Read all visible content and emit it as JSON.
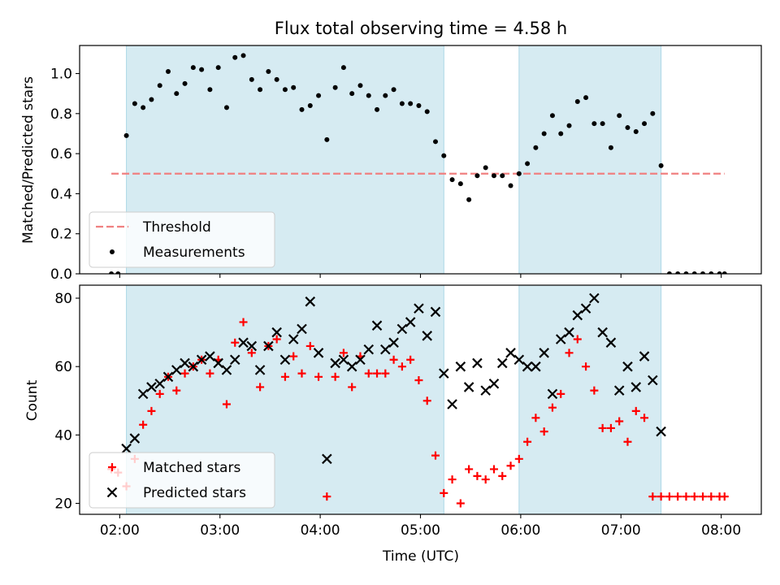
{
  "chart_data": [
    {
      "type": "scatter",
      "title": "Flux total observing time = 4.58 h",
      "xlabel": "",
      "ylabel": "Matched/Predicted stars",
      "xlim": [
        "01:36",
        "08:24"
      ],
      "ylim": [
        0,
        1.14
      ],
      "yticks": [
        0.0,
        0.2,
        0.4,
        0.6,
        0.8,
        1.0
      ],
      "ytick_labels": [
        "0.0",
        "0.2",
        "0.4",
        "0.6",
        "0.8",
        "1.0"
      ],
      "shaded_periods": [
        [
          "02:04",
          "05:14"
        ],
        [
          "05:59",
          "07:24"
        ]
      ],
      "threshold": {
        "name": "Threshold",
        "value": 0.5,
        "x_range": [
          "01:55",
          "08:02"
        ],
        "color": "#f08080"
      },
      "series": [
        {
          "name": "Measurements",
          "color": "#000000",
          "marker": "dot",
          "x": [
            "01:55",
            "01:59",
            "02:04",
            "02:09",
            "02:14",
            "02:19",
            "02:24",
            "02:29",
            "02:34",
            "02:39",
            "02:44",
            "02:49",
            "02:54",
            "02:59",
            "03:04",
            "03:09",
            "03:14",
            "03:19",
            "03:24",
            "03:29",
            "03:34",
            "03:39",
            "03:44",
            "03:49",
            "03:54",
            "03:59",
            "04:04",
            "04:09",
            "04:14",
            "04:19",
            "04:24",
            "04:29",
            "04:34",
            "04:39",
            "04:44",
            "04:49",
            "04:54",
            "04:59",
            "05:04",
            "05:09",
            "05:14",
            "05:19",
            "05:24",
            "05:29",
            "05:34",
            "05:39",
            "05:44",
            "05:49",
            "05:54",
            "05:59",
            "06:04",
            "06:09",
            "06:14",
            "06:19",
            "06:24",
            "06:29",
            "06:34",
            "06:39",
            "06:44",
            "06:49",
            "06:54",
            "06:59",
            "07:04",
            "07:09",
            "07:14",
            "07:19",
            "07:24",
            "07:29",
            "07:34",
            "07:39",
            "07:44",
            "07:49",
            "07:54",
            "07:59",
            "08:02"
          ],
          "y": [
            0.0,
            0.0,
            0.69,
            0.85,
            0.83,
            0.87,
            0.94,
            1.01,
            0.9,
            0.95,
            1.03,
            1.02,
            0.92,
            1.03,
            0.83,
            1.08,
            1.09,
            0.97,
            0.92,
            1.01,
            0.97,
            0.92,
            0.93,
            0.82,
            0.84,
            0.89,
            0.67,
            0.93,
            1.03,
            0.9,
            0.94,
            0.89,
            0.82,
            0.89,
            0.92,
            0.85,
            0.85,
            0.84,
            0.81,
            0.66,
            0.59,
            0.47,
            0.45,
            0.37,
            0.49,
            0.53,
            0.49,
            0.49,
            0.44,
            0.5,
            0.55,
            0.63,
            0.7,
            0.79,
            0.7,
            0.74,
            0.86,
            0.88,
            0.75,
            0.75,
            0.63,
            0.79,
            0.73,
            0.71,
            0.75,
            0.8,
            0.54,
            0.0,
            0.0,
            0.0,
            0.0,
            0.0,
            0.0,
            0.0,
            0.0
          ]
        }
      ],
      "legend": {
        "placement": "lower-left",
        "entries": [
          "Threshold",
          "Measurements"
        ]
      },
      "grid": false
    },
    {
      "type": "scatter",
      "title": "",
      "xlabel": "Time (UTC)",
      "ylabel": "Count",
      "xlim": [
        "01:36",
        "08:24"
      ],
      "ylim": [
        16.8,
        83.8
      ],
      "xticks": [
        "02:00",
        "03:00",
        "04:00",
        "05:00",
        "06:00",
        "07:00",
        "08:00"
      ],
      "yticks": [
        20,
        40,
        60,
        80
      ],
      "shaded_periods": [
        [
          "02:04",
          "05:14"
        ],
        [
          "05:59",
          "07:24"
        ]
      ],
      "series": [
        {
          "name": "Matched stars",
          "color": "#ff0000",
          "marker": "plus",
          "x": [
            "01:55",
            "01:59",
            "02:04",
            "02:09",
            "02:14",
            "02:19",
            "02:24",
            "02:29",
            "02:34",
            "02:39",
            "02:44",
            "02:49",
            "02:54",
            "02:59",
            "03:04",
            "03:09",
            "03:14",
            "03:19",
            "03:24",
            "03:29",
            "03:34",
            "03:39",
            "03:44",
            "03:49",
            "03:54",
            "03:59",
            "04:04",
            "04:09",
            "04:14",
            "04:19",
            "04:24",
            "04:29",
            "04:34",
            "04:39",
            "04:44",
            "04:49",
            "04:54",
            "04:59",
            "05:04",
            "05:09",
            "05:14",
            "05:19",
            "05:24",
            "05:29",
            "05:34",
            "05:39",
            "05:44",
            "05:49",
            "05:54",
            "05:59",
            "06:04",
            "06:09",
            "06:14",
            "06:19",
            "06:24",
            "06:29",
            "06:34",
            "06:39",
            "06:44",
            "06:49",
            "06:54",
            "06:59",
            "07:04",
            "07:09",
            "07:14",
            "07:19",
            "07:24",
            "07:29",
            "07:34",
            "07:39",
            "07:44",
            "07:49",
            "07:54",
            "07:59",
            "08:02"
          ],
          "y": [
            30,
            29,
            25,
            33,
            43,
            47,
            52,
            57,
            53,
            58,
            60,
            62,
            58,
            62,
            49,
            67,
            73,
            64,
            54,
            66,
            68,
            57,
            63,
            58,
            66,
            57,
            22,
            57,
            64,
            54,
            63,
            58,
            58,
            58,
            62,
            60,
            62,
            56,
            50,
            34,
            23,
            27,
            20,
            30,
            28,
            27,
            30,
            28,
            31,
            33,
            38,
            45,
            41,
            48,
            52,
            64,
            68,
            60,
            53,
            42,
            42,
            44,
            38,
            47,
            45,
            22,
            22,
            22,
            22,
            22,
            22,
            22,
            22,
            22,
            22
          ]
        },
        {
          "name": "Predicted stars",
          "color": "#000000",
          "marker": "x",
          "x": [
            "02:04",
            "02:09",
            "02:14",
            "02:19",
            "02:24",
            "02:29",
            "02:34",
            "02:39",
            "02:44",
            "02:49",
            "02:54",
            "02:59",
            "03:04",
            "03:09",
            "03:14",
            "03:19",
            "03:24",
            "03:29",
            "03:34",
            "03:39",
            "03:44",
            "03:49",
            "03:54",
            "03:59",
            "04:04",
            "04:09",
            "04:14",
            "04:19",
            "04:24",
            "04:29",
            "04:34",
            "04:39",
            "04:44",
            "04:49",
            "04:54",
            "04:59",
            "05:04",
            "05:09",
            "05:14",
            "05:19",
            "05:24",
            "05:29",
            "05:34",
            "05:39",
            "05:44",
            "05:49",
            "05:54",
            "05:59",
            "06:04",
            "06:09",
            "06:14",
            "06:19",
            "06:24",
            "06:29",
            "06:34",
            "06:39",
            "06:44",
            "06:49",
            "06:54",
            "06:59",
            "07:04",
            "07:09",
            "07:14",
            "07:19",
            "07:24"
          ],
          "y": [
            36,
            39,
            52,
            54,
            55,
            57,
            59,
            61,
            60,
            62,
            63,
            61,
            59,
            62,
            67,
            66,
            59,
            66,
            70,
            62,
            68,
            71,
            79,
            64,
            33,
            61,
            62,
            60,
            62,
            65,
            72,
            65,
            67,
            71,
            73,
            77,
            69,
            76,
            58,
            49,
            60,
            54,
            61,
            53,
            55,
            61,
            64,
            62,
            60,
            60,
            64,
            52,
            68,
            70,
            75,
            77,
            80,
            70,
            67,
            53,
            60,
            54,
            63,
            56,
            41
          ]
        }
      ],
      "legend": {
        "placement": "lower-left",
        "entries": [
          "Matched stars",
          "Predicted stars"
        ]
      },
      "grid": false
    }
  ]
}
